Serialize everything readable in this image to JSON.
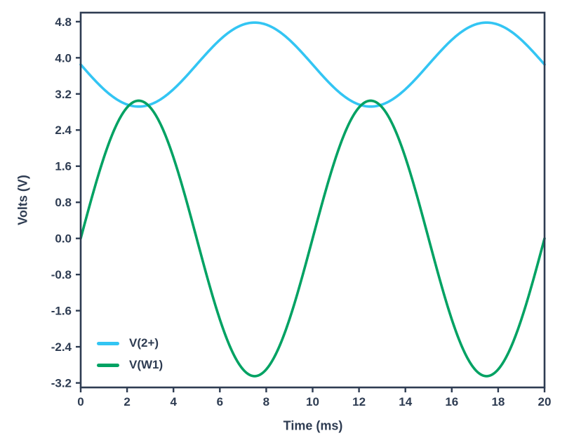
{
  "chart_data": {
    "type": "line",
    "title": "",
    "xlabel": "Time (ms)",
    "ylabel": "Volts (V)",
    "xlim": [
      0,
      20
    ],
    "ylim": [
      -3.3,
      5.0
    ],
    "xticks": [
      0,
      2,
      4,
      6,
      8,
      10,
      12,
      14,
      16,
      18,
      20
    ],
    "xtick_labels": [
      "0",
      "2",
      "4",
      "6",
      "8",
      "10",
      "12",
      "14",
      "16",
      "18",
      "20"
    ],
    "yticks": [
      4.8,
      4.0,
      3.2,
      2.4,
      1.6,
      0.8,
      0.0,
      -0.8,
      -1.6,
      -2.4,
      -3.2
    ],
    "ytick_labels": [
      "4.8",
      "4.0",
      "3.2",
      "2.4",
      "1.6",
      "0.8",
      "0.0",
      "-0.8",
      "-1.6",
      "-2.4",
      "-3.2"
    ],
    "grid": false,
    "legend_position": "bottom-left-inside",
    "axis_color": "#2E3C52",
    "background": "#ffffff",
    "x_ms": [
      0,
      1,
      2,
      3,
      4,
      5,
      6,
      7,
      8,
      9,
      10,
      11,
      12,
      13,
      14,
      15,
      16,
      17,
      18,
      19,
      20
    ],
    "series": [
      {
        "name": "V(2+)",
        "color": "#33C5F3",
        "model": {
          "shape": "sine",
          "offset": 3.85,
          "amplitude": 0.93,
          "period_ms": 10,
          "phase_deg": 180
        },
        "values": [
          3.85,
          3.3,
          2.97,
          2.97,
          3.3,
          3.85,
          4.4,
          4.73,
          4.73,
          4.4,
          3.85,
          3.3,
          2.97,
          2.97,
          3.3,
          3.85,
          4.4,
          4.73,
          4.73,
          4.4,
          3.85
        ]
      },
      {
        "name": "V(W1)",
        "color": "#00A263",
        "model": {
          "shape": "sine",
          "offset": 0.0,
          "amplitude": 3.05,
          "period_ms": 10,
          "phase_deg": 0
        },
        "values": [
          0.0,
          1.79,
          2.9,
          2.9,
          1.79,
          0.0,
          -1.79,
          -2.9,
          -2.9,
          -1.79,
          0.0,
          1.79,
          2.9,
          2.9,
          1.79,
          0.0,
          -1.79,
          -2.9,
          -2.9,
          -1.79,
          0.0
        ]
      }
    ]
  }
}
